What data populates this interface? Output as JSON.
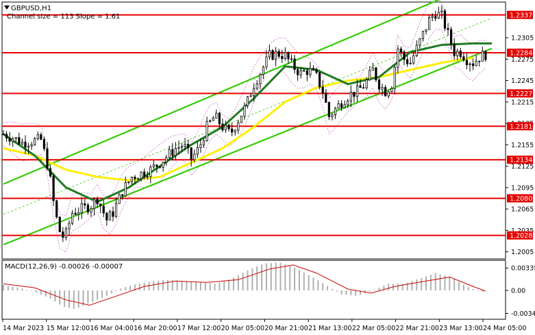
{
  "header": {
    "symbol": "GBPUSD,H1",
    "channel_info": "Channel size = 113 Slope = 1.61",
    "menu_icon": "triangle-down-icon"
  },
  "colors": {
    "level_line": "#e60000",
    "channel_line": "#33cc00",
    "sma_yellow": "#ffee00",
    "sma_green": "#1f7a1f",
    "envelope": "#cc66cc",
    "candle": "#000000",
    "macd_hist": "#b0b0b0",
    "macd_signal": "#cc0000"
  },
  "chart_data": {
    "type": "candlestick",
    "symbol": "GBPUSD",
    "timeframe": "H1",
    "ylim": [
      1.1995,
      1.2355
    ],
    "price_ticks": [
      "1.2305",
      "1.2275",
      "1.2245",
      "1.2215",
      "1.2185",
      "1.2155",
      "1.2125",
      "1.2095",
      "1.2065",
      "1.2035",
      "1.2005"
    ],
    "levels": [
      "1.2337",
      "1.2284",
      "1.2227",
      "1.2181",
      "1.2134",
      "1.2080",
      "1.2028"
    ],
    "time_labels": [
      "14 Mar 2023",
      "15 Mar 12:00",
      "16 Mar 04:00",
      "16 Mar 20:00",
      "17 Mar 12:00",
      "20 Mar 05:00",
      "20 Mar 21:00",
      "21 Mar 13:00",
      "22 Mar 05:00",
      "22 Mar 21:00",
      "23 Mar 13:00",
      "24 Mar 05:00"
    ],
    "close_path": [
      [
        0,
        1.217
      ],
      [
        6,
        1.2165
      ],
      [
        12,
        1.2158
      ],
      [
        18,
        1.216
      ],
      [
        24,
        1.2162
      ],
      [
        29,
        1.212
      ],
      [
        33,
        1.206
      ],
      [
        37,
        1.2025
      ],
      [
        40,
        1.203
      ],
      [
        44,
        1.206
      ],
      [
        50,
        1.2065
      ],
      [
        56,
        1.207
      ],
      [
        60,
        1.208
      ],
      [
        66,
        1.205
      ],
      [
        70,
        1.206
      ],
      [
        76,
        1.209
      ],
      [
        82,
        1.211
      ],
      [
        88,
        1.2115
      ],
      [
        94,
        1.212
      ],
      [
        100,
        1.213
      ],
      [
        105,
        1.214
      ],
      [
        110,
        1.215
      ],
      [
        115,
        1.2155
      ],
      [
        120,
        1.2135
      ],
      [
        125,
        1.215
      ],
      [
        130,
        1.218
      ],
      [
        135,
        1.2195
      ],
      [
        140,
        1.218
      ],
      [
        145,
        1.217
      ],
      [
        150,
        1.219
      ],
      [
        155,
        1.221
      ],
      [
        160,
        1.224
      ],
      [
        165,
        1.226
      ],
      [
        170,
        1.228
      ],
      [
        175,
        1.2283
      ],
      [
        180,
        1.228
      ],
      [
        185,
        1.2265
      ],
      [
        190,
        1.2255
      ],
      [
        195,
        1.226
      ],
      [
        200,
        1.225
      ],
      [
        204,
        1.223
      ],
      [
        208,
        1.2195
      ],
      [
        212,
        1.2205
      ],
      [
        216,
        1.2215
      ],
      [
        221,
        1.2225
      ],
      [
        226,
        1.223
      ],
      [
        231,
        1.224
      ],
      [
        236,
        1.226
      ],
      [
        240,
        1.224
      ],
      [
        244,
        1.223
      ],
      [
        248,
        1.224
      ],
      [
        252,
        1.229
      ],
      [
        256,
        1.2275
      ],
      [
        260,
        1.227
      ],
      [
        264,
        1.229
      ],
      [
        268,
        1.231
      ],
      [
        272,
        1.233
      ],
      [
        276,
        1.234
      ],
      [
        280,
        1.2335
      ],
      [
        284,
        1.231
      ],
      [
        288,
        1.2285
      ],
      [
        292,
        1.2285
      ],
      [
        296,
        1.2275
      ],
      [
        300,
        1.227
      ],
      [
        304,
        1.2278
      ],
      [
        308,
        1.2282
      ]
    ],
    "sma_yellow": [
      [
        0,
        1.215
      ],
      [
        20,
        1.214
      ],
      [
        40,
        1.212
      ],
      [
        60,
        1.211
      ],
      [
        80,
        1.2105
      ],
      [
        100,
        1.211
      ],
      [
        120,
        1.213
      ],
      [
        140,
        1.215
      ],
      [
        160,
        1.218
      ],
      [
        180,
        1.2215
      ],
      [
        200,
        1.2235
      ],
      [
        220,
        1.2245
      ],
      [
        240,
        1.225
      ],
      [
        260,
        1.226
      ],
      [
        280,
        1.227
      ],
      [
        300,
        1.2277
      ]
    ],
    "sma_green": [
      [
        0,
        1.217
      ],
      [
        20,
        1.214
      ],
      [
        40,
        1.2095
      ],
      [
        60,
        1.2075
      ],
      [
        80,
        1.2095
      ],
      [
        100,
        1.2125
      ],
      [
        120,
        1.2155
      ],
      [
        140,
        1.218
      ],
      [
        160,
        1.222
      ],
      [
        180,
        1.2265
      ],
      [
        200,
        1.226
      ],
      [
        220,
        1.224
      ],
      [
        240,
        1.225
      ],
      [
        260,
        1.2285
      ],
      [
        280,
        1.2295
      ],
      [
        300,
        1.2297
      ],
      [
        312,
        1.2297
      ]
    ],
    "channel": {
      "upper": [
        [
          0,
          1.21
        ],
        [
          280,
          1.236
        ]
      ],
      "lower": [
        [
          0,
          1.2015
        ],
        [
          312,
          1.229
        ]
      ]
    },
    "macd": {
      "label": "MACD(12,26,9) -0.00026 -0.00007",
      "ticks": [
        "0.00335",
        "0.00",
        "-0.00343"
      ],
      "ylim": [
        -0.0043,
        0.0045
      ],
      "hist": [
        [
          0,
          0.0008
        ],
        [
          10,
          0.0004
        ],
        [
          20,
          -0.0002
        ],
        [
          30,
          -0.0012
        ],
        [
          38,
          -0.0024
        ],
        [
          46,
          -0.0028
        ],
        [
          56,
          -0.0018
        ],
        [
          66,
          -0.0008
        ],
        [
          76,
          0.0004
        ],
        [
          86,
          0.001
        ],
        [
          96,
          0.0014
        ],
        [
          106,
          0.0016
        ],
        [
          116,
          0.0014
        ],
        [
          126,
          0.0012
        ],
        [
          136,
          0.001
        ],
        [
          146,
          0.0018
        ],
        [
          156,
          0.003
        ],
        [
          166,
          0.004
        ],
        [
          176,
          0.0042
        ],
        [
          186,
          0.0034
        ],
        [
          196,
          0.0022
        ],
        [
          206,
          0.0008
        ],
        [
          216,
          -0.0006
        ],
        [
          226,
          -0.0008
        ],
        [
          236,
          0.0
        ],
        [
          246,
          0.001
        ],
        [
          256,
          0.001
        ],
        [
          266,
          0.0018
        ],
        [
          276,
          0.0026
        ],
        [
          286,
          0.002
        ],
        [
          296,
          0.0006
        ],
        [
          304,
          -0.0002
        ]
      ],
      "signal": [
        [
          0,
          0.001
        ],
        [
          20,
          0.0004
        ],
        [
          40,
          -0.0014
        ],
        [
          55,
          -0.0022
        ],
        [
          70,
          -0.001
        ],
        [
          90,
          0.0006
        ],
        [
          110,
          0.0014
        ],
        [
          130,
          0.0012
        ],
        [
          150,
          0.0016
        ],
        [
          170,
          0.0032
        ],
        [
          185,
          0.0038
        ],
        [
          200,
          0.0026
        ],
        [
          220,
          0.0002
        ],
        [
          235,
          -0.0004
        ],
        [
          250,
          0.0006
        ],
        [
          270,
          0.0014
        ],
        [
          285,
          0.002
        ],
        [
          300,
          0.0006
        ],
        [
          308,
          -0.0001
        ]
      ]
    }
  }
}
